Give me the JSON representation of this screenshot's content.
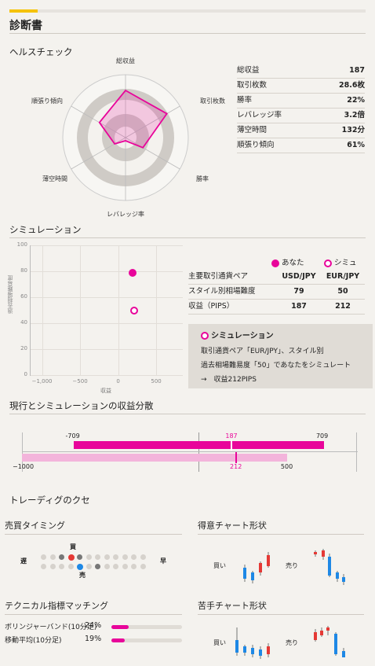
{
  "title": "診断書",
  "health": {
    "heading": "ヘルスチェック",
    "axes": [
      "総収益",
      "取引枚数",
      "勝率",
      "レバレッジ率",
      "薄空時間",
      "順張り傾向"
    ],
    "values": [
      0.75,
      0.76,
      0.32,
      0.0,
      0.2,
      0.48
    ],
    "stats": [
      {
        "label": "総収益",
        "value": "187"
      },
      {
        "label": "取引枚数",
        "value": "28.6枚"
      },
      {
        "label": "勝率",
        "value": "22%"
      },
      {
        "label": "レバレッジ率",
        "value": "3.2倍"
      },
      {
        "label": "薄空時間",
        "value": "132分"
      },
      {
        "label": "順張り傾向",
        "value": "61%"
      }
    ]
  },
  "simulation": {
    "heading": "シミュレーション",
    "ylabel": "過去相場難易度",
    "xlabel": "収益",
    "yticks": [
      "100",
      "80",
      "60",
      "40",
      "20",
      "0"
    ],
    "xticks": [
      "−1,000",
      "−500",
      "0",
      "500"
    ],
    "points": [
      {
        "x": 187,
        "y": 79,
        "type": "you"
      },
      {
        "x": 212,
        "y": 50,
        "type": "sim"
      }
    ],
    "legend_you": "あなた",
    "legend_sim": "シミュ",
    "rows": [
      {
        "label": "主要取引通貨ペア",
        "you": "USD/JPY",
        "sim": "EUR/JPY"
      },
      {
        "label": "スタイル別相場難度",
        "you": "79",
        "sim": "50"
      },
      {
        "label": "収益（PIPS）",
        "you": "187",
        "sim": "212"
      }
    ],
    "box_title": "シミュレーション",
    "box_line1": "取引通貨ペア「EUR/JPY」、スタイル別",
    "box_line2": "過去相場難易度「50」であなたをシミュレート",
    "box_line3": "→　収益212PIPS"
  },
  "distribution": {
    "heading": "現行とシミュレーションの収益分散",
    "you": {
      "min": -709,
      "max": 709,
      "mean": 187,
      "min_label": "-709",
      "max_label": "709",
      "mean_label": "187"
    },
    "sim": {
      "min": -1000,
      "max": 500,
      "mean": 212,
      "min_label": "−1000",
      "max_label": "500",
      "mean_label": "212"
    },
    "axis_min": -1000,
    "axis_max": 900
  },
  "habits": {
    "heading": "トレーディグのクセ",
    "timing_heading": "売買タイミング",
    "slow": "遅",
    "fast": "早",
    "buy": "買",
    "sell": "売",
    "good_chart_heading": "得意チャート形状",
    "bad_chart_heading": "苦手チャート形状",
    "buy_label": "買い",
    "sell_label": "売り",
    "technical_heading": "テクニカル指標マッチング",
    "technicals": [
      {
        "label": "ボリンジャーバンド(10分足)",
        "pct": "24%",
        "value": 0.24
      },
      {
        "label": "移動平均(10分足)",
        "pct": "19%",
        "value": 0.19
      }
    ]
  },
  "colors": {
    "accent": "#e8059a",
    "accent_light": "#f3b4db",
    "blue": "#1e88e5",
    "red": "#e53935",
    "yellow": "#f5c200"
  }
}
